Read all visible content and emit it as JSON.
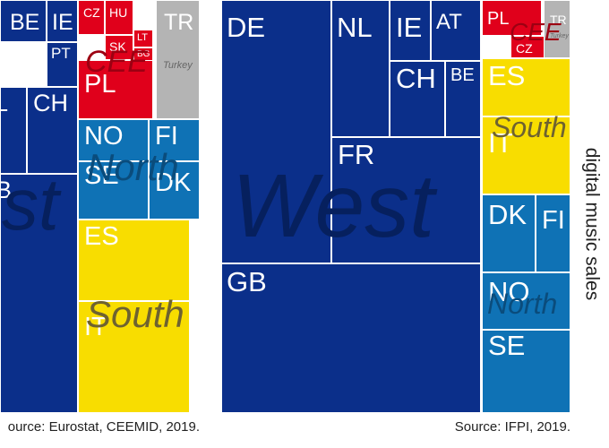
{
  "colors": {
    "West": "#0b2f8a",
    "CEE": "#e0001b",
    "North": "#0f72b5",
    "South": "#f8dd00",
    "Other": "#b4b4b4"
  },
  "chart_data": [
    {
      "type": "treemap",
      "source": "ource: Eurostat, CEEMID, 2019.",
      "groups": [
        {
          "name": "West",
          "label": "West",
          "label_visible": "st",
          "color": "#0b2f8a",
          "label_color": "#06205e"
        },
        {
          "name": "CEE",
          "label": "CEE",
          "color": "#e0001b",
          "label_color": "#9c0012"
        },
        {
          "name": "North",
          "label": "North",
          "color": "#0f72b5",
          "label_color": "#0a4c7c"
        },
        {
          "name": "South",
          "label": "South",
          "color": "#f8dd00",
          "label_color": "#6e6230"
        },
        {
          "name": "Other",
          "label": "",
          "color": "#b4b4b4",
          "label_color": "#666666"
        }
      ],
      "tiles": [
        {
          "name": "BE",
          "group": "West"
        },
        {
          "name": "IE",
          "group": "West"
        },
        {
          "name": "PT",
          "group": "West"
        },
        {
          "name": "CH",
          "group": "West"
        },
        {
          "name": "L",
          "group": "West"
        },
        {
          "name": "B",
          "group": "West"
        },
        {
          "name": "CZ",
          "group": "CEE"
        },
        {
          "name": "HU",
          "group": "CEE"
        },
        {
          "name": "SK",
          "group": "CEE"
        },
        {
          "name": "LT",
          "group": "CEE"
        },
        {
          "name": "BG",
          "group": "CEE"
        },
        {
          "name": "PL",
          "group": "CEE"
        },
        {
          "name": "TR",
          "group": "Other",
          "sublabel": "Turkey"
        },
        {
          "name": "NO",
          "group": "North"
        },
        {
          "name": "FI",
          "group": "North"
        },
        {
          "name": "SE",
          "group": "North"
        },
        {
          "name": "DK",
          "group": "North"
        },
        {
          "name": "ES",
          "group": "South"
        },
        {
          "name": "IT",
          "group": "South"
        }
      ]
    },
    {
      "type": "treemap",
      "source": "Source: IFPI, 2019.",
      "side_label": "digital music sales",
      "groups": [
        {
          "name": "West",
          "label": "West",
          "color": "#0b2f8a",
          "label_color": "#06205e"
        },
        {
          "name": "CEE",
          "label": "CEE",
          "color": "#e0001b",
          "label_color": "#9c0012"
        },
        {
          "name": "South",
          "label": "South",
          "color": "#f8dd00",
          "label_color": "#6e6230"
        },
        {
          "name": "North",
          "label": "North",
          "color": "#0f72b5",
          "label_color": "#0a4c7c"
        },
        {
          "name": "Other",
          "label": "",
          "color": "#b4b4b4",
          "label_color": "#666666"
        }
      ],
      "tiles": [
        {
          "name": "DE",
          "group": "West"
        },
        {
          "name": "NL",
          "group": "West"
        },
        {
          "name": "IE",
          "group": "West"
        },
        {
          "name": "AT",
          "group": "West"
        },
        {
          "name": "CH",
          "group": "West"
        },
        {
          "name": "BE",
          "group": "West"
        },
        {
          "name": "FR",
          "group": "West"
        },
        {
          "name": "GB",
          "group": "West"
        },
        {
          "name": "PL",
          "group": "CEE"
        },
        {
          "name": "CZ",
          "group": "CEE"
        },
        {
          "name": "TR",
          "group": "Other",
          "sublabel": "Turkey"
        },
        {
          "name": "ES",
          "group": "South"
        },
        {
          "name": "IT",
          "group": "South"
        },
        {
          "name": "DK",
          "group": "North"
        },
        {
          "name": "FI",
          "group": "North"
        },
        {
          "name": "NO",
          "group": "North"
        },
        {
          "name": "SE",
          "group": "North"
        }
      ]
    }
  ]
}
